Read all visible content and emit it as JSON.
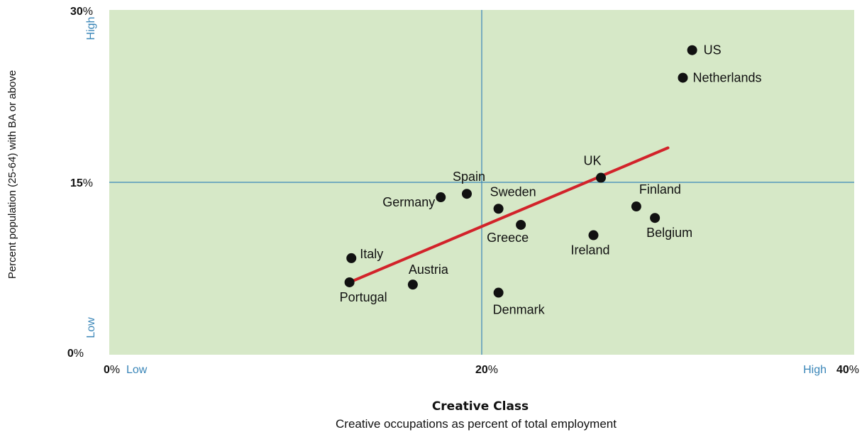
{
  "chart_data": {
    "type": "scatter",
    "xlabel": "Creative Class",
    "x_subtitle": "Creative occupations as percent of total employment",
    "ylabel": "Percent population (25-64) with BA or above",
    "xlim": [
      0,
      40
    ],
    "ylim": [
      0,
      30
    ],
    "x_ticks": [
      {
        "num": "0",
        "suffix": "%"
      },
      {
        "num": "20",
        "suffix": "%"
      },
      {
        "num": "40",
        "suffix": "%"
      }
    ],
    "y_ticks": [
      {
        "num": "0",
        "suffix": "%"
      },
      {
        "num": "15",
        "suffix": "%"
      },
      {
        "num": "30",
        "suffix": "%"
      }
    ],
    "x_low_label": "Low",
    "x_high_label": "High",
    "y_low_label": "Low",
    "y_high_label": "High",
    "quadrant_lines": {
      "x": 20,
      "y": 15
    },
    "points": [
      {
        "name": "US",
        "x": 31.3,
        "y": 26.5
      },
      {
        "name": "Netherlands",
        "x": 30.8,
        "y": 24.1
      },
      {
        "name": "UK",
        "x": 26.4,
        "y": 15.4
      },
      {
        "name": "Finland",
        "x": 28.3,
        "y": 12.9
      },
      {
        "name": "Belgium",
        "x": 29.3,
        "y": 11.9
      },
      {
        "name": "Ireland",
        "x": 26.0,
        "y": 10.4
      },
      {
        "name": "Spain",
        "x": 19.2,
        "y": 14.0
      },
      {
        "name": "Germany",
        "x": 17.8,
        "y": 13.7
      },
      {
        "name": "Sweden",
        "x": 20.9,
        "y": 12.7
      },
      {
        "name": "Greece",
        "x": 22.1,
        "y": 11.3
      },
      {
        "name": "Italy",
        "x": 13.0,
        "y": 8.4
      },
      {
        "name": "Portugal",
        "x": 12.9,
        "y": 6.3
      },
      {
        "name": "Austria",
        "x": 16.3,
        "y": 6.1
      },
      {
        "name": "Denmark",
        "x": 20.9,
        "y": 5.4
      }
    ],
    "trendline": {
      "x1": 12.9,
      "y1": 6.3,
      "x2": 30.0,
      "y2": 18.0
    },
    "colors": {
      "plot_bg": "#d6e8c7",
      "quadrant_line": "#3a86b8",
      "trendline": "#d2232a",
      "point": "#111111",
      "low_high_text": "#3a86b8"
    }
  }
}
